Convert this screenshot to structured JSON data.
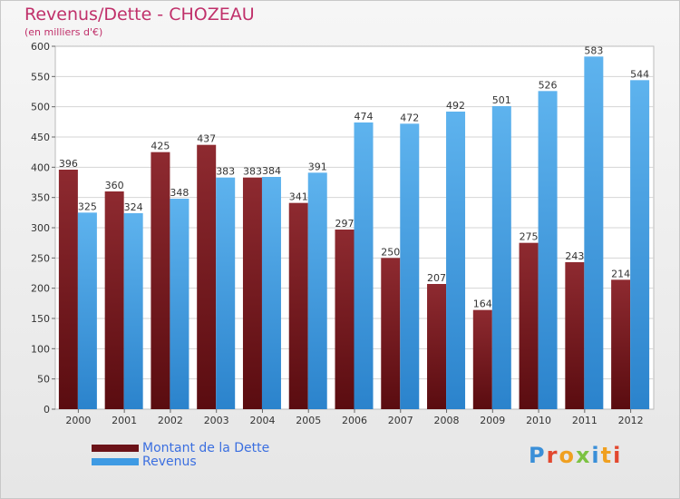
{
  "chart_data": {
    "type": "bar",
    "title": "Revenus/Dette - CHOZEAU",
    "subtitle": "(en milliers d'€)",
    "categories": [
      "2000",
      "2001",
      "2002",
      "2003",
      "2004",
      "2005",
      "2006",
      "2007",
      "2008",
      "2009",
      "2010",
      "2011",
      "2012"
    ],
    "series": [
      {
        "name": "Montant de la Dette",
        "color": "#7a1a20",
        "values": [
          396,
          360,
          425,
          437,
          383,
          341,
          297,
          250,
          207,
          164,
          275,
          243,
          214
        ]
      },
      {
        "name": "Revenus",
        "color": "#4aa3e6",
        "values": [
          325,
          324,
          348,
          383,
          384,
          391,
          474,
          472,
          492,
          501,
          526,
          583,
          544
        ]
      }
    ],
    "ylim": [
      0,
      600
    ],
    "yticks": [
      0,
      50,
      100,
      150,
      200,
      250,
      300,
      350,
      400,
      450,
      500,
      550,
      600
    ],
    "grid": true,
    "legend": "bottom-left"
  },
  "logo": {
    "letters": [
      {
        "ch": "P",
        "color": "#3a8fd8"
      },
      {
        "ch": "r",
        "color": "#e2482f"
      },
      {
        "ch": "o",
        "color": "#f0a020"
      },
      {
        "ch": "x",
        "color": "#7cc242"
      },
      {
        "ch": "i",
        "color": "#3a8fd8"
      },
      {
        "ch": "t",
        "color": "#f0a020"
      },
      {
        "ch": "i",
        "color": "#e2482f"
      }
    ]
  }
}
